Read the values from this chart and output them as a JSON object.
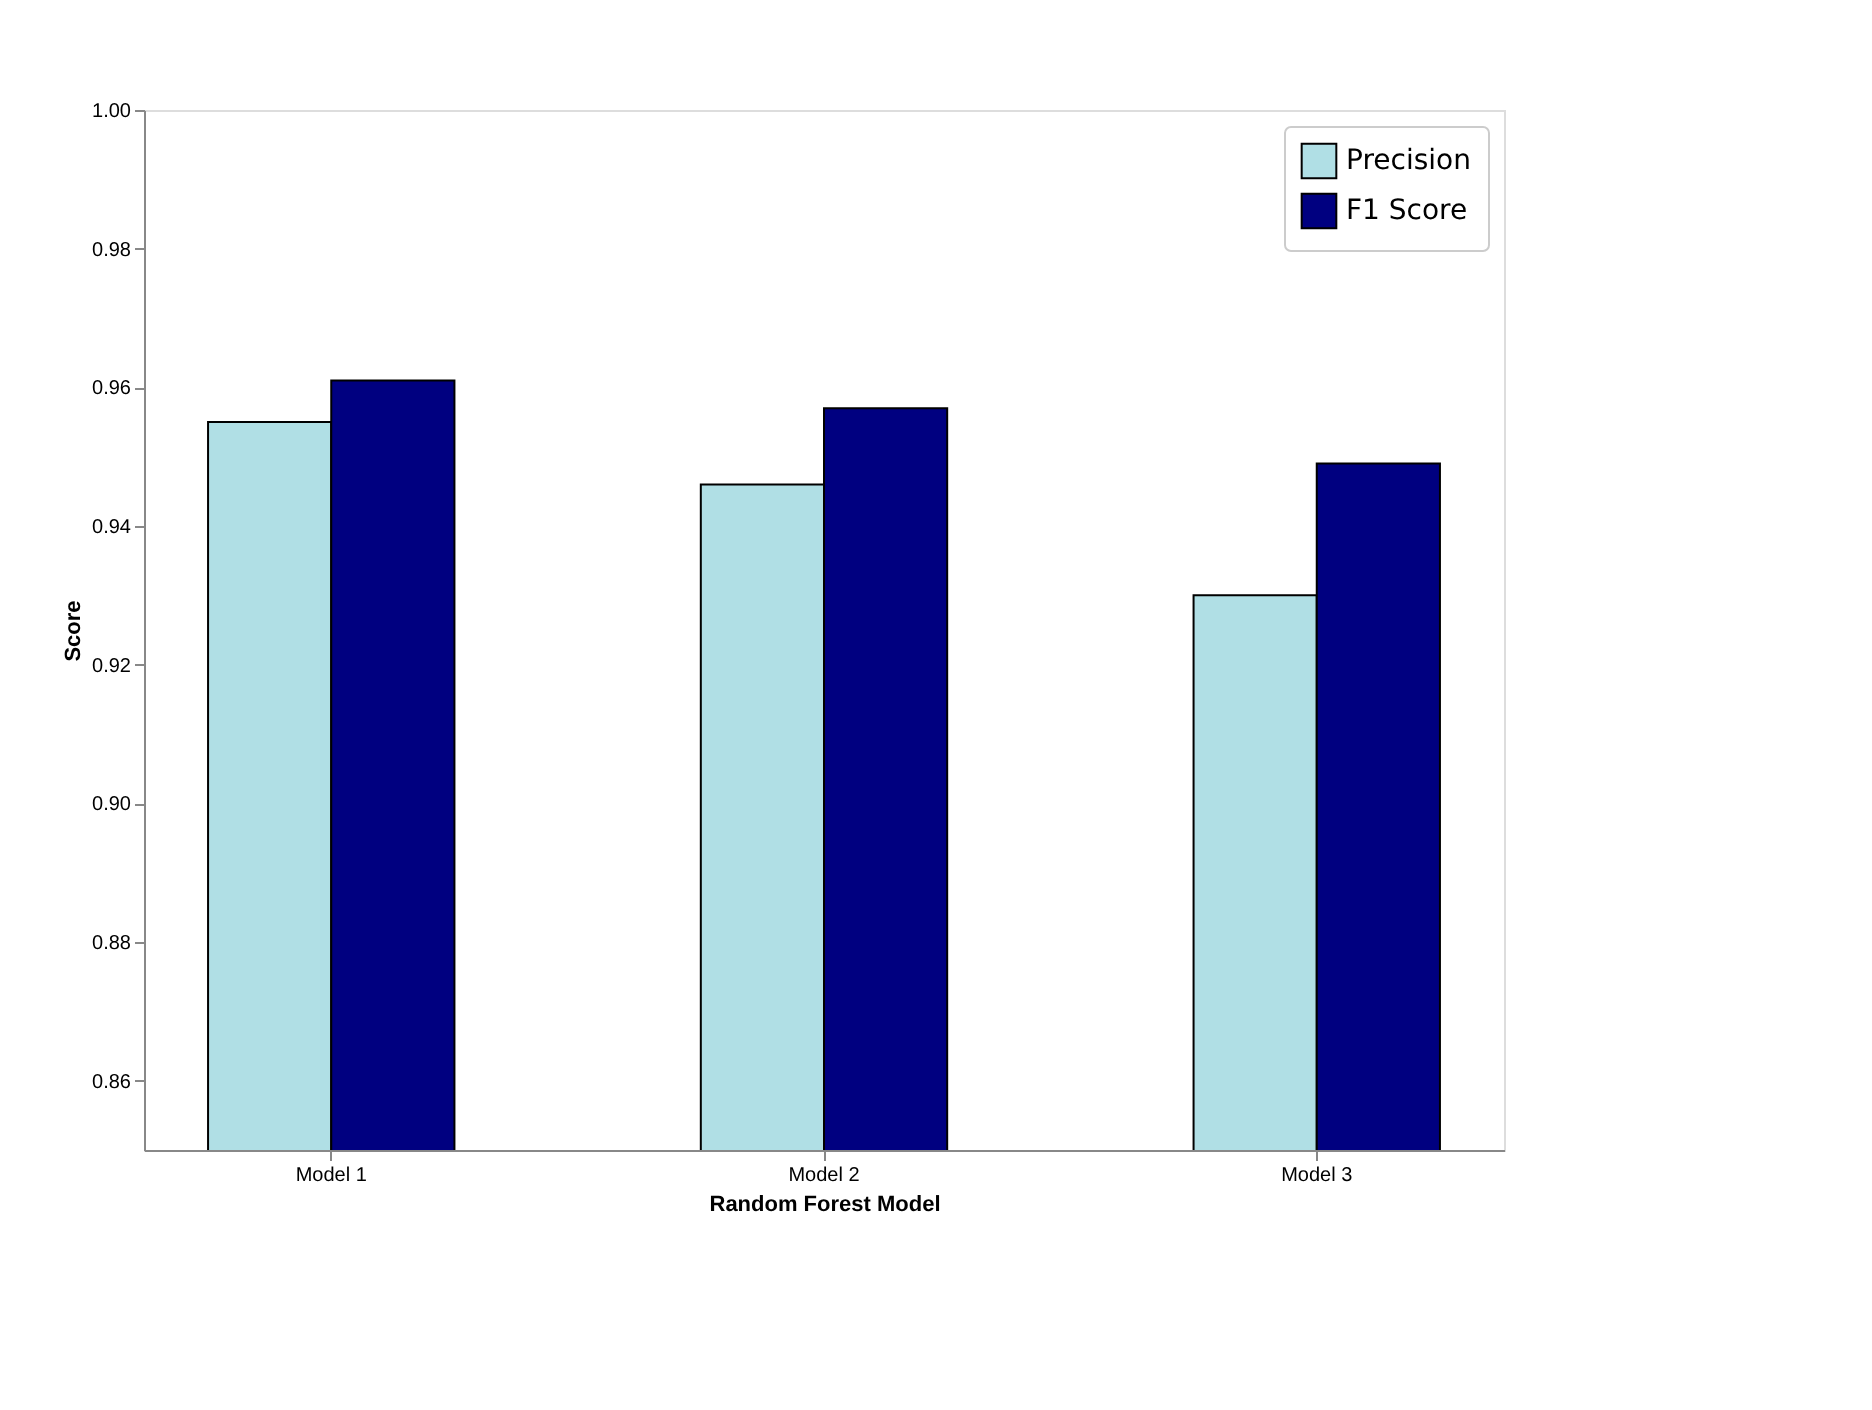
{
  "chart_data": {
    "type": "bar",
    "xlabel": "Random Forest Model",
    "ylabel": "Score",
    "categories": [
      "Model 1",
      "Model 2",
      "Model 3"
    ],
    "series": [
      {
        "name": "Precision",
        "color": "#b0dfe5",
        "values": [
          0.955,
          0.946,
          0.93
        ]
      },
      {
        "name": "F1 Score",
        "color": "#000080",
        "values": [
          0.961,
          0.957,
          0.949
        ]
      }
    ],
    "ylim": [
      0.85,
      1.0
    ],
    "yticks": [
      0.86,
      0.88,
      {
        "value": 0.9,
        "label": "0.90"
      },
      0.92,
      0.94,
      0.96,
      0.98,
      {
        "value": 1.0,
        "label": "1.00"
      }
    ],
    "grid": false,
    "legend": "top right"
  }
}
